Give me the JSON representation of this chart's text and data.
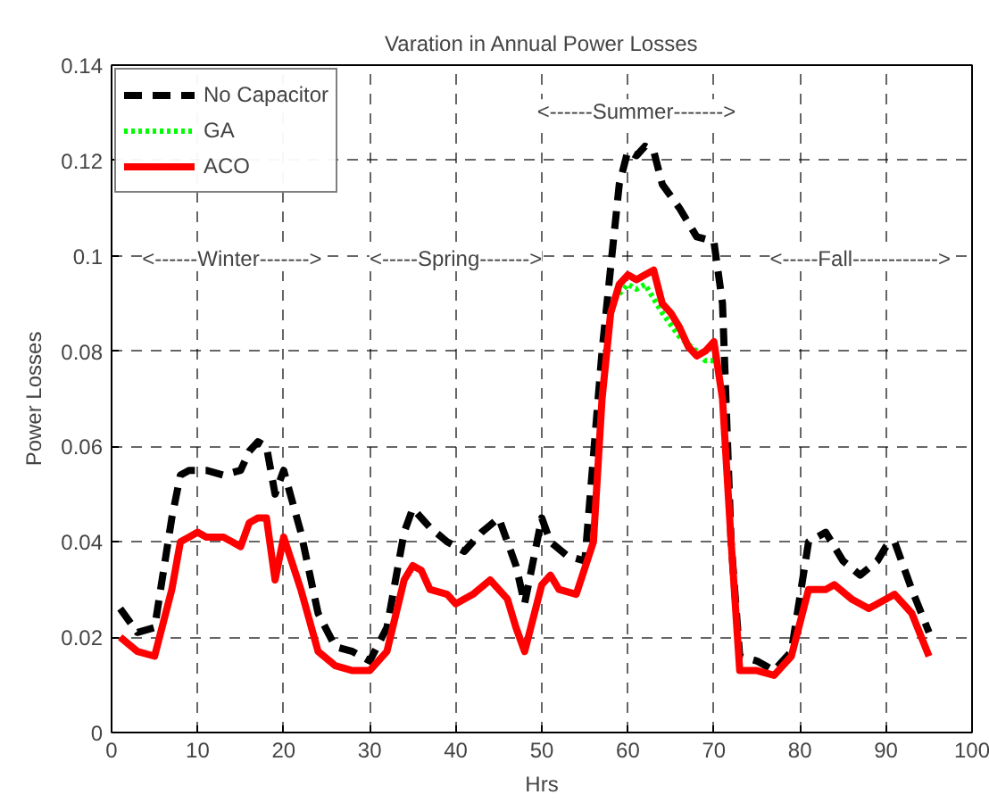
{
  "chart_data": {
    "type": "line",
    "title": "Varation in Annual Power Losses",
    "xlabel": "Hrs",
    "ylabel": "Power Losses",
    "xlim": [
      0,
      100
    ],
    "xticks": [
      0,
      10,
      20,
      30,
      40,
      50,
      60,
      70,
      80,
      90,
      100
    ],
    "ylim": [
      0,
      0.14
    ],
    "yticks": [
      0,
      0.02,
      0.04,
      0.06,
      0.08,
      0.1,
      0.12,
      0.14
    ],
    "grid": true,
    "legend": "top left",
    "annotations": [
      "<------Winter------->",
      "<-----Spring------->",
      "<------Summer------->",
      "<-----Fall------------>"
    ],
    "series": [
      {
        "name": "No Capacitor",
        "color": "#000000",
        "line_style": "dashed",
        "x": [
          1,
          3,
          5,
          7,
          8,
          9,
          11,
          13,
          15,
          16,
          17,
          18,
          19,
          20,
          22,
          24,
          26,
          28,
          30,
          32,
          34,
          35,
          37,
          39,
          41,
          43,
          45,
          47,
          48,
          50,
          51,
          53,
          55,
          57,
          59,
          60,
          61,
          62,
          63,
          64,
          66,
          68,
          70,
          71,
          72,
          73,
          75,
          77,
          79,
          81,
          83,
          85,
          87,
          89,
          90,
          91,
          93,
          95
        ],
        "values": [
          0.026,
          0.021,
          0.022,
          0.045,
          0.054,
          0.055,
          0.055,
          0.054,
          0.055,
          0.059,
          0.061,
          0.06,
          0.05,
          0.055,
          0.042,
          0.025,
          0.018,
          0.017,
          0.015,
          0.022,
          0.042,
          0.047,
          0.043,
          0.04,
          0.038,
          0.042,
          0.045,
          0.035,
          0.027,
          0.045,
          0.04,
          0.037,
          0.036,
          0.08,
          0.115,
          0.122,
          0.121,
          0.123,
          0.122,
          0.115,
          0.11,
          0.104,
          0.103,
          0.09,
          0.04,
          0.016,
          0.015,
          0.013,
          0.017,
          0.04,
          0.042,
          0.036,
          0.033,
          0.036,
          0.039,
          0.04,
          0.03,
          0.021
        ]
      },
      {
        "name": "GA",
        "color": "#00ff00",
        "line_style": "dotted",
        "x": [
          59,
          60,
          61,
          62,
          64,
          66,
          68,
          69,
          70
        ],
        "values": [
          0.092,
          0.094,
          0.093,
          0.094,
          0.088,
          0.083,
          0.08,
          0.078,
          0.078
        ]
      },
      {
        "name": "ACO",
        "color": "#ff0000",
        "line_style": "solid",
        "x": [
          1,
          3,
          5,
          7,
          8,
          9,
          10,
          11,
          13,
          14,
          15,
          16,
          17,
          18,
          19,
          20,
          22,
          24,
          26,
          28,
          30,
          32,
          34,
          35,
          36,
          37,
          39,
          40,
          42,
          44,
          46,
          47,
          48,
          50,
          51,
          52,
          54,
          56,
          57,
          58,
          59,
          60,
          61,
          62,
          63,
          64,
          65,
          66,
          67,
          68,
          69,
          70,
          71,
          72,
          73,
          75,
          77,
          79,
          81,
          83,
          84,
          86,
          88,
          90,
          91,
          93,
          95
        ],
        "values": [
          0.02,
          0.017,
          0.016,
          0.03,
          0.04,
          0.041,
          0.042,
          0.041,
          0.041,
          0.04,
          0.039,
          0.044,
          0.045,
          0.045,
          0.032,
          0.041,
          0.03,
          0.017,
          0.014,
          0.013,
          0.013,
          0.017,
          0.032,
          0.035,
          0.034,
          0.03,
          0.029,
          0.027,
          0.029,
          0.032,
          0.028,
          0.022,
          0.017,
          0.031,
          0.033,
          0.03,
          0.029,
          0.04,
          0.07,
          0.088,
          0.094,
          0.096,
          0.095,
          0.096,
          0.097,
          0.09,
          0.088,
          0.085,
          0.081,
          0.079,
          0.08,
          0.082,
          0.07,
          0.04,
          0.013,
          0.013,
          0.012,
          0.016,
          0.03,
          0.03,
          0.031,
          0.028,
          0.026,
          0.028,
          0.029,
          0.025,
          0.016
        ]
      }
    ]
  }
}
